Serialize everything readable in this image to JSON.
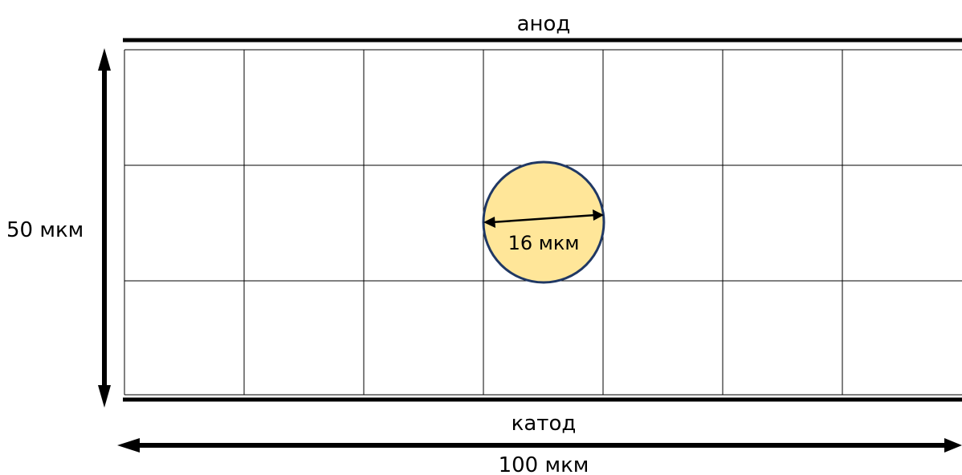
{
  "labels": {
    "anode": "анод",
    "cathode": "катод",
    "height": "50 мкм",
    "width": "100 мкм",
    "particle_diameter": "16 мкм"
  },
  "grid": {
    "columns": 7,
    "rows": 3
  },
  "colors": {
    "particle_fill": "#FFE699",
    "particle_stroke": "#203864",
    "lines": "#000000"
  }
}
